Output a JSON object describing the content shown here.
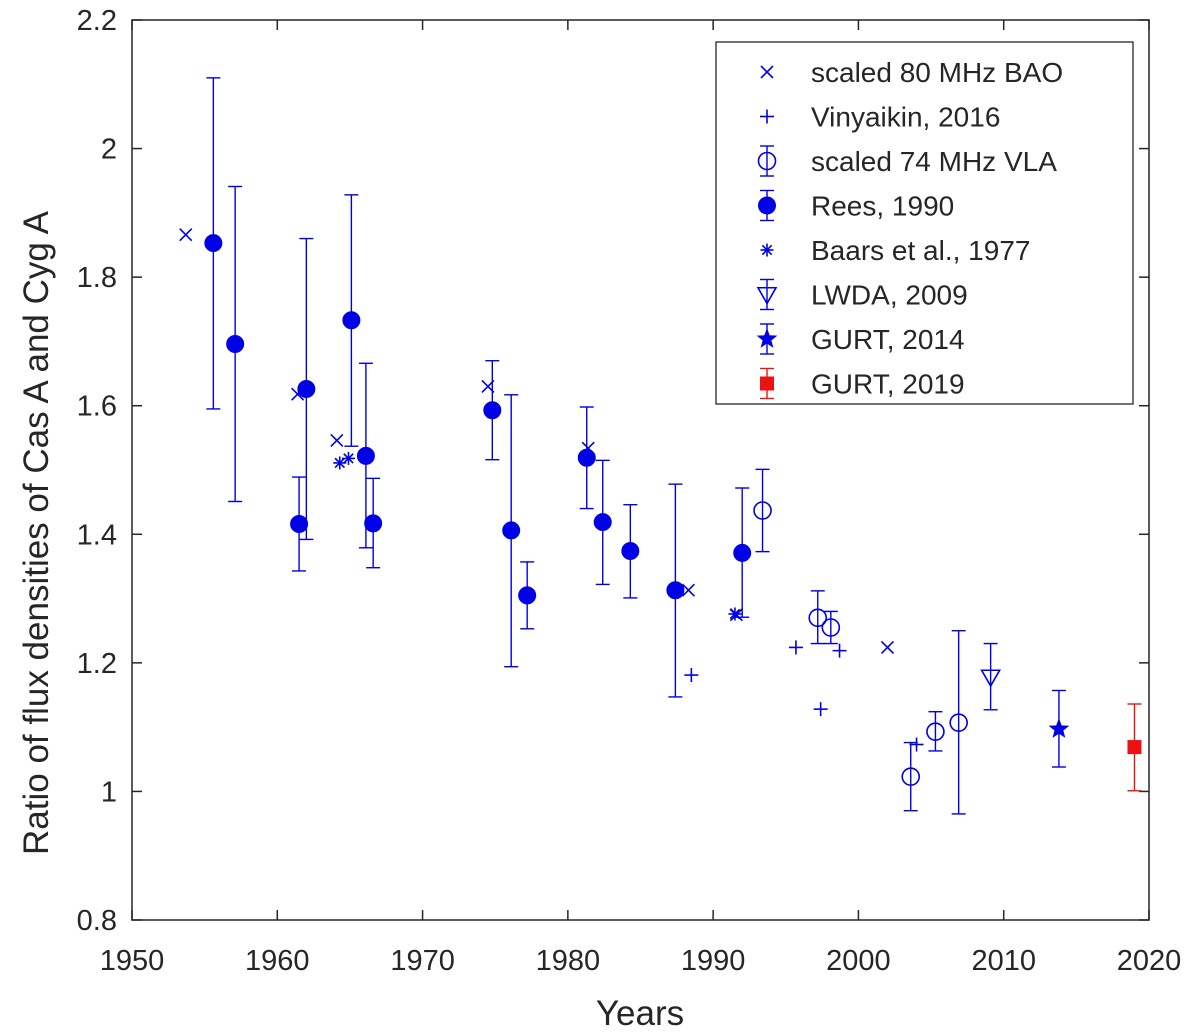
{
  "chart_data": {
    "type": "scatter",
    "title": "",
    "xlabel": "Years",
    "ylabel": "Ratio of flux densities of Cas A and Cyg A",
    "xlim": [
      1950,
      2020
    ],
    "ylim": [
      0.8,
      2.2
    ],
    "xticks": [
      1950,
      1960,
      1970,
      1980,
      1990,
      2000,
      2010,
      2020
    ],
    "xtick_labels": [
      "1950",
      "1960",
      "1970",
      "1980",
      "1990",
      "2000",
      "2010",
      "2020"
    ],
    "yticks": [
      0.8,
      1.0,
      1.2,
      1.4,
      1.6,
      1.8,
      2.0,
      2.2
    ],
    "ytick_labels": [
      "0.8",
      "1",
      "1.2",
      "1.4",
      "1.6",
      "1.8",
      "2",
      "2.2"
    ],
    "grid": false,
    "legend_position": "top-right",
    "series": [
      {
        "name": "scaled 80 MHz BAO",
        "marker": "x",
        "color": "#0000e6",
        "errorbars": false,
        "points": [
          {
            "x": 1953.7,
            "y": 1.866
          },
          {
            "x": 1961.4,
            "y": 1.618
          },
          {
            "x": 1964.1,
            "y": 1.546
          },
          {
            "x": 1974.5,
            "y": 1.63
          },
          {
            "x": 1981.4,
            "y": 1.534
          },
          {
            "x": 1988.3,
            "y": 1.313
          },
          {
            "x": 1991.6,
            "y": 1.275
          },
          {
            "x": 2002.0,
            "y": 1.224
          }
        ]
      },
      {
        "name": "Vinyaikin, 2016",
        "marker": "+",
        "color": "#0000e6",
        "errorbars": false,
        "points": [
          {
            "x": 1988.5,
            "y": 1.181
          },
          {
            "x": 1995.7,
            "y": 1.224
          },
          {
            "x": 1997.4,
            "y": 1.128
          },
          {
            "x": 1998.7,
            "y": 1.219
          },
          {
            "x": 2004.0,
            "y": 1.073
          }
        ]
      },
      {
        "name": "scaled 74 MHz VLA",
        "marker": "open-circle",
        "color": "#0000e6",
        "errorbars": true,
        "points": [
          {
            "x": 1993.4,
            "y": 1.437,
            "low": 1.373,
            "high": 1.501
          },
          {
            "x": 1997.2,
            "y": 1.27,
            "low": 1.23,
            "high": 1.312
          },
          {
            "x": 1998.1,
            "y": 1.255,
            "low": 1.23,
            "high": 1.28
          },
          {
            "x": 2003.6,
            "y": 1.023,
            "low": 0.97,
            "high": 1.076
          },
          {
            "x": 2005.3,
            "y": 1.093,
            "low": 1.063,
            "high": 1.124
          },
          {
            "x": 2006.9,
            "y": 1.107,
            "low": 0.965,
            "high": 1.25
          }
        ]
      },
      {
        "name": "Rees, 1990",
        "marker": "filled-circle",
        "color": "#0000e6",
        "errorbars": true,
        "points": [
          {
            "x": 1955.6,
            "y": 1.853,
            "low": 1.595,
            "high": 2.11
          },
          {
            "x": 1957.1,
            "y": 1.696,
            "low": 1.451,
            "high": 1.941
          },
          {
            "x": 1961.5,
            "y": 1.416,
            "low": 1.343,
            "high": 1.489
          },
          {
            "x": 1962.0,
            "y": 1.626,
            "low": 1.392,
            "high": 1.86
          },
          {
            "x": 1965.1,
            "y": 1.733,
            "low": 1.537,
            "high": 1.928
          },
          {
            "x": 1966.1,
            "y": 1.522,
            "low": 1.379,
            "high": 1.666
          },
          {
            "x": 1966.6,
            "y": 1.417,
            "low": 1.348,
            "high": 1.487
          },
          {
            "x": 1974.8,
            "y": 1.593,
            "low": 1.516,
            "high": 1.67
          },
          {
            "x": 1976.1,
            "y": 1.406,
            "low": 1.194,
            "high": 1.617
          },
          {
            "x": 1977.2,
            "y": 1.305,
            "low": 1.253,
            "high": 1.357
          },
          {
            "x": 1981.3,
            "y": 1.519,
            "low": 1.44,
            "high": 1.598
          },
          {
            "x": 1982.4,
            "y": 1.419,
            "low": 1.322,
            "high": 1.515
          },
          {
            "x": 1984.3,
            "y": 1.374,
            "low": 1.301,
            "high": 1.446
          },
          {
            "x": 1987.4,
            "y": 1.313,
            "low": 1.147,
            "high": 1.478
          },
          {
            "x": 1992.0,
            "y": 1.371,
            "low": 1.271,
            "high": 1.472
          }
        ]
      },
      {
        "name": "Baars et al., 1977",
        "marker": "asterisk",
        "color": "#0000e6",
        "errorbars": false,
        "points": [
          {
            "x": 1964.3,
            "y": 1.511
          },
          {
            "x": 1964.9,
            "y": 1.518
          },
          {
            "x": 1991.5,
            "y": 1.276
          }
        ]
      },
      {
        "name": "LWDA, 2009",
        "marker": "triangle-down",
        "color": "#0000e6",
        "errorbars": true,
        "points": [
          {
            "x": 2009.1,
            "y": 1.178,
            "low": 1.127,
            "high": 1.23
          }
        ]
      },
      {
        "name": "GURT, 2014",
        "marker": "star",
        "color": "#0000e6",
        "errorbars": true,
        "points": [
          {
            "x": 2013.8,
            "y": 1.097,
            "low": 1.038,
            "high": 1.157
          }
        ]
      },
      {
        "name": "GURT, 2019",
        "marker": "filled-square",
        "color": "#ee1111",
        "errorbars": true,
        "points": [
          {
            "x": 2019.0,
            "y": 1.069,
            "low": 1.001,
            "high": 1.136
          }
        ]
      }
    ]
  }
}
